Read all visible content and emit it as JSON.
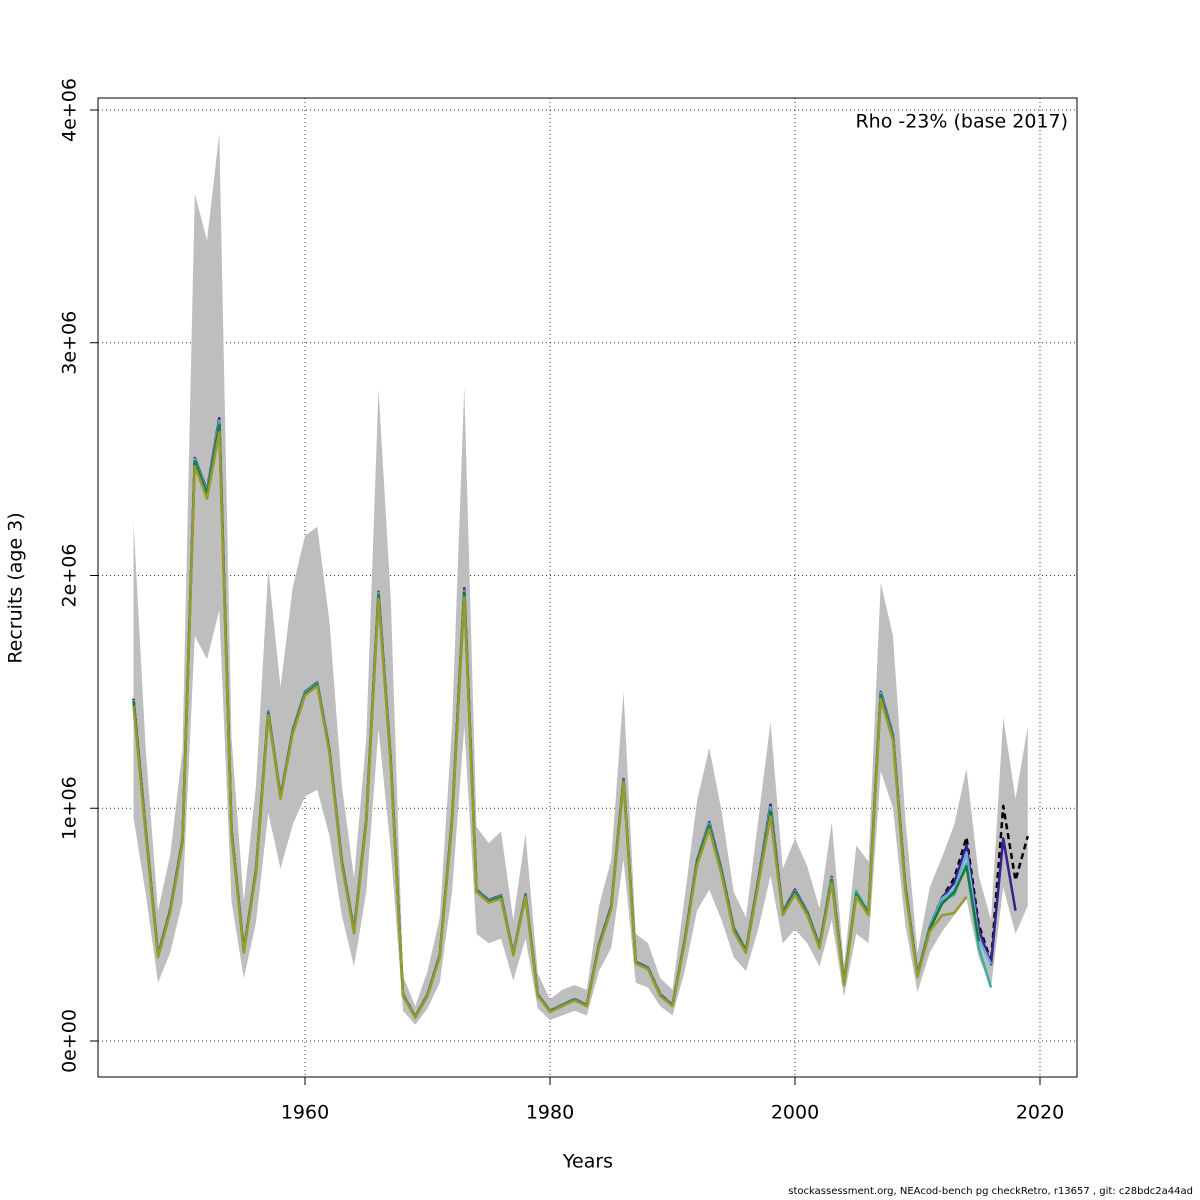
{
  "chart_data": {
    "type": "line",
    "annotation": "Rho -23% (base 2017)",
    "xlabel": "Years",
    "ylabel": "Recruits (age 3)",
    "footer": "stockassessment.org, NEAcod-bench pg  checkRetro, r13657 , git: c28bdc2a44ad",
    "grid": true,
    "xlim": [
      1943.1,
      2023.02
    ],
    "ylim": [
      -154700,
      4051600
    ],
    "xticks": [
      1960,
      1980,
      2000,
      2020
    ],
    "yticks": [
      {
        "value": 0,
        "label": "0e+00"
      },
      {
        "value": 1000000,
        "label": "1e+06"
      },
      {
        "value": 2000000,
        "label": "2e+06"
      },
      {
        "value": 3000000,
        "label": "3e+06"
      },
      {
        "value": 4000000,
        "label": "4e+06"
      }
    ],
    "x": [
      1946,
      1947,
      1948,
      1949,
      1950,
      1951,
      1952,
      1953,
      1954,
      1955,
      1956,
      1957,
      1958,
      1959,
      1960,
      1961,
      1962,
      1963,
      1964,
      1965,
      1966,
      1967,
      1968,
      1969,
      1970,
      1971,
      1972,
      1973,
      1974,
      1975,
      1976,
      1977,
      1978,
      1979,
      1980,
      1981,
      1982,
      1983,
      1984,
      1985,
      1986,
      1987,
      1988,
      1989,
      1990,
      1991,
      1992,
      1993,
      1994,
      1995,
      1996,
      1997,
      1998,
      1999,
      2000,
      2001,
      2002,
      2003,
      2004,
      2005,
      2006,
      2007,
      2008,
      2009,
      2010,
      2011,
      2012,
      2013,
      2014,
      2015,
      2016,
      2017,
      2018,
      2019
    ],
    "band": {
      "color": "#bebebe",
      "low": [
        960000,
        630000,
        250000,
        380000,
        600000,
        1740000,
        1640000,
        1850000,
        600000,
        270000,
        510000,
        980000,
        740000,
        930000,
        1050000,
        1080000,
        880000,
        540000,
        320000,
        640000,
        1340000,
        820000,
        130000,
        70000,
        140000,
        250000,
        640000,
        1350000,
        460000,
        420000,
        440000,
        260000,
        440000,
        140000,
        90000,
        110000,
        130000,
        110000,
        300000,
        400000,
        780000,
        250000,
        230000,
        150000,
        110000,
        300000,
        560000,
        650000,
        520000,
        360000,
        300000,
        480000,
        710000,
        420000,
        480000,
        420000,
        320000,
        520000,
        190000,
        460000,
        420000,
        1160000,
        1000000,
        500000,
        210000,
        380000,
        470000,
        540000,
        610000,
        360000,
        230000,
        660000,
        460000,
        580000
      ],
      "high": [
        2230000,
        1250000,
        560000,
        800000,
        1250000,
        3640000,
        3440000,
        3900000,
        1300000,
        600000,
        1100000,
        2030000,
        1520000,
        1950000,
        2170000,
        2210000,
        1800000,
        1100000,
        700000,
        1300000,
        2800000,
        1900000,
        280000,
        150000,
        300000,
        530000,
        1350000,
        2810000,
        920000,
        850000,
        900000,
        520000,
        890000,
        290000,
        180000,
        220000,
        240000,
        220000,
        580000,
        780000,
        1500000,
        460000,
        420000,
        270000,
        220000,
        620000,
        1030000,
        1260000,
        990000,
        640000,
        530000,
        950000,
        1370000,
        740000,
        870000,
        750000,
        570000,
        940000,
        320000,
        840000,
        770000,
        1970000,
        1740000,
        960000,
        380000,
        660000,
        790000,
        930000,
        1170000,
        710000,
        520000,
        1390000,
        1040000,
        1350000
      ]
    },
    "series": [
      {
        "color": "#000000",
        "dashed": true,
        "values": [
          1470000,
          905000,
          370000,
          565000,
          865000,
          2505000,
          2365000,
          2675000,
          905000,
          390000,
          735000,
          1415000,
          1050000,
          1335000,
          1500000,
          1540000,
          1250000,
          775000,
          475000,
          950000,
          1930000,
          1205000,
          200000,
          105000,
          200000,
          370000,
          950000,
          1945000,
          650000,
          605000,
          625000,
          375000,
          630000,
          200000,
          130000,
          155000,
          180000,
          155000,
          415000,
          580000,
          1125000,
          340000,
          315000,
          200000,
          155000,
          435000,
          775000,
          940000,
          735000,
          485000,
          390000,
          690000,
          1015000,
          555000,
          650000,
          555000,
          410000,
          705000,
          250000,
          635000,
          555000,
          1500000,
          1315000,
          670000,
          285000,
          490000,
          615000,
          700000,
          875000,
          500000,
          340000,
          1010000,
          690000,
          880000
        ]
      },
      {
        "color": "#3a1f8f",
        "values": [
          1470000,
          905000,
          370000,
          565000,
          865000,
          2505000,
          2365000,
          2675000,
          905000,
          390000,
          735000,
          1415000,
          1050000,
          1335000,
          1500000,
          1540000,
          1250000,
          775000,
          475000,
          950000,
          1930000,
          1205000,
          200000,
          105000,
          200000,
          370000,
          950000,
          1945000,
          650000,
          605000,
          625000,
          375000,
          630000,
          200000,
          130000,
          155000,
          180000,
          155000,
          415000,
          580000,
          1125000,
          340000,
          315000,
          200000,
          155000,
          435000,
          775000,
          940000,
          735000,
          485000,
          390000,
          690000,
          1015000,
          555000,
          650000,
          555000,
          410000,
          705000,
          250000,
          635000,
          555000,
          1500000,
          1315000,
          670000,
          285000,
          490000,
          615000,
          680000,
          840000,
          480000,
          330000,
          870000,
          560000,
          null
        ]
      },
      {
        "color": "#6aaee0",
        "values": [
          1465000,
          900000,
          368000,
          562000,
          862000,
          2500000,
          2360000,
          2665000,
          900000,
          388000,
          732000,
          1412000,
          1048000,
          1332000,
          1498000,
          1537000,
          1248000,
          772000,
          472000,
          947000,
          1925000,
          1200000,
          198000,
          104000,
          198000,
          368000,
          948000,
          1935000,
          648000,
          603000,
          622000,
          373000,
          628000,
          198000,
          129000,
          154000,
          178000,
          154000,
          412000,
          577000,
          1122000,
          338000,
          313000,
          198000,
          154000,
          432000,
          770000,
          935000,
          730000,
          482000,
          388000,
          685000,
          1005000,
          552000,
          645000,
          552000,
          408000,
          700000,
          248000,
          640000,
          552000,
          1495000,
          1310000,
          665000,
          283000,
          488000,
          612000,
          650000,
          810000,
          440000,
          330000,
          null,
          null,
          null
        ]
      },
      {
        "color": "#3aaea0",
        "values": [
          1462000,
          898000,
          366000,
          560000,
          860000,
          2495000,
          2355000,
          2655000,
          898000,
          386000,
          730000,
          1410000,
          1046000,
          1330000,
          1495000,
          1535000,
          1245000,
          770000,
          470000,
          945000,
          1920000,
          1198000,
          197000,
          103000,
          197000,
          366000,
          946000,
          1930000,
          646000,
          601000,
          620000,
          372000,
          626000,
          197000,
          128000,
          153000,
          177000,
          153000,
          410000,
          575000,
          1120000,
          337000,
          312000,
          197000,
          153000,
          430000,
          768000,
          930000,
          728000,
          480000,
          386000,
          682000,
          995000,
          550000,
          642000,
          550000,
          406000,
          695000,
          246000,
          645000,
          550000,
          1490000,
          1305000,
          662000,
          282000,
          485000,
          600000,
          630000,
          760000,
          400000,
          230000,
          null,
          null,
          null
        ]
      },
      {
        "color": "#1a7a3a",
        "values": [
          1460000,
          895000,
          365000,
          558000,
          858000,
          2490000,
          2350000,
          2645000,
          895000,
          385000,
          728000,
          1408000,
          1045000,
          1328000,
          1492000,
          1532000,
          1242000,
          768000,
          468000,
          942000,
          1915000,
          1195000,
          196000,
          102000,
          196000,
          365000,
          944000,
          1925000,
          645000,
          600000,
          618000,
          371000,
          625000,
          196000,
          127000,
          152000,
          176000,
          152000,
          408000,
          573000,
          1118000,
          336000,
          311000,
          196000,
          152000,
          428000,
          765000,
          925000,
          725000,
          478000,
          384000,
          680000,
          985000,
          548000,
          640000,
          548000,
          404000,
          690000,
          245000,
          630000,
          548000,
          1485000,
          1300000,
          660000,
          280000,
          480000,
          590000,
          640000,
          750000,
          430000,
          null,
          null,
          null,
          null
        ]
      },
      {
        "color": "#9a9a2a",
        "values": [
          1440000,
          885000,
          360000,
          552000,
          850000,
          2470000,
          2330000,
          2615000,
          885000,
          380000,
          720000,
          1400000,
          1040000,
          1320000,
          1485000,
          1525000,
          1235000,
          760000,
          462000,
          935000,
          1900000,
          1185000,
          193000,
          100000,
          193000,
          360000,
          935000,
          1905000,
          640000,
          595000,
          612000,
          368000,
          620000,
          193000,
          125000,
          150000,
          174000,
          150000,
          402000,
          566000,
          1112000,
          333000,
          308000,
          193000,
          150000,
          422000,
          755000,
          910000,
          715000,
          470000,
          378000,
          672000,
          965000,
          540000,
          630000,
          540000,
          398000,
          680000,
          240000,
          620000,
          540000,
          1470000,
          1290000,
          650000,
          275000,
          470000,
          540000,
          550000,
          620000,
          null,
          null,
          null,
          null,
          null
        ]
      }
    ]
  }
}
